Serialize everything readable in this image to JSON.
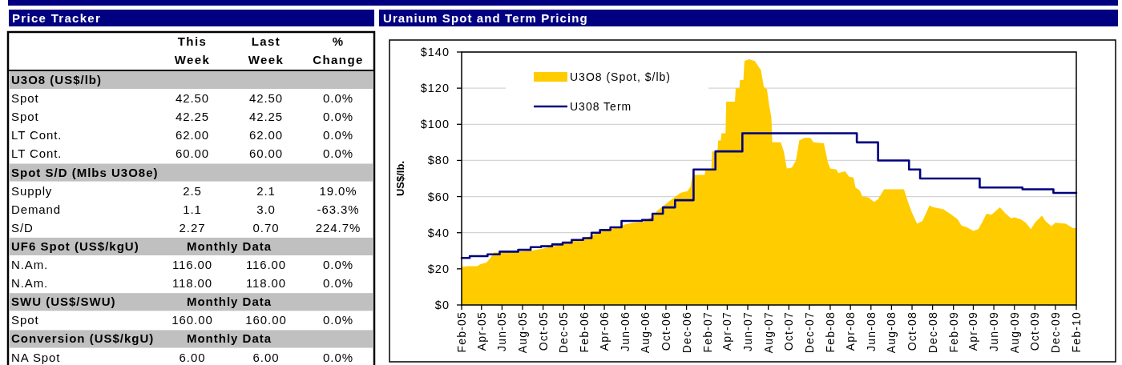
{
  "chart_data": [
    {
      "type": "other",
      "title": "Price Tracker",
      "categories": [
        "This Week",
        "Last Week",
        "% Change"
      ],
      "y_categories": [
        "U3O8 (US$/lb)",
        "Spot",
        "Spot",
        "LT Cont.",
        "LT Cont.",
        "Spot S/D (Mlbs U3O8e)",
        "Supply",
        "Demand",
        "S/D",
        "UF6 Spot (US$/kgU)",
        "N.Am.",
        "N.Am.",
        "SWU (US$/SWU)",
        "Spot",
        "Conversion (US$/kgU)",
        "NA Spot"
      ],
      "cell_labels": [
        [
          null,
          null,
          null
        ],
        [
          "42.50",
          "42.50",
          "0.0%"
        ],
        [
          "42.25",
          "42.25",
          "0.0%"
        ],
        [
          "62.00",
          "62.00",
          "0.0%"
        ],
        [
          "60.00",
          "60.00",
          "0.0%"
        ],
        [
          null,
          null,
          null
        ],
        [
          "2.5",
          "2.1",
          "19.0%"
        ],
        [
          "1.1",
          "3.0",
          "-63.3%"
        ],
        [
          "2.27",
          "0.70",
          "224.7%"
        ],
        [
          "Monthly Data",
          null,
          null
        ],
        [
          "116.00",
          "116.00",
          "0.0%"
        ],
        [
          "118.00",
          "118.00",
          "0.0%"
        ],
        [
          "Monthly Data",
          null,
          null
        ],
        [
          "160.00",
          "160.00",
          "0.0%"
        ],
        [
          "Monthly Data",
          null,
          null
        ],
        [
          "6.00",
          "6.00",
          "0.0%"
        ]
      ]
    },
    {
      "type": "area",
      "title": "Uranium Spot and Term Pricing",
      "ylabel": "US$/lb.",
      "xlim": [
        "2005-02",
        "2010-02"
      ],
      "xticks": [
        {
          "value": "2005-02",
          "label": "Feb-05"
        },
        {
          "value": "2005-04",
          "label": "Apr-05"
        },
        {
          "value": "2005-06",
          "label": "Jun-05"
        },
        {
          "value": "2005-08",
          "label": "Aug-05"
        },
        {
          "value": "2005-10",
          "label": "Oct-05"
        },
        {
          "value": "2005-12",
          "label": "Dec-05"
        },
        {
          "value": "2006-02",
          "label": "Feb-06"
        },
        {
          "value": "2006-04",
          "label": "Apr-06"
        },
        {
          "value": "2006-06",
          "label": "Jun-06"
        },
        {
          "value": "2006-08",
          "label": "Aug-06"
        },
        {
          "value": "2006-10",
          "label": "Oct-06"
        },
        {
          "value": "2006-12",
          "label": "Dec-06"
        },
        {
          "value": "2007-02",
          "label": "Feb-07"
        },
        {
          "value": "2007-04",
          "label": "Apr-07"
        },
        {
          "value": "2007-06",
          "label": "Jun-07"
        },
        {
          "value": "2007-08",
          "label": "Aug-07"
        },
        {
          "value": "2007-10",
          "label": "Oct-07"
        },
        {
          "value": "2007-12",
          "label": "Dec-07"
        },
        {
          "value": "2008-02",
          "label": "Feb-08"
        },
        {
          "value": "2008-04",
          "label": "Apr-08"
        },
        {
          "value": "2008-06",
          "label": "Jun-08"
        },
        {
          "value": "2008-08",
          "label": "Aug-08"
        },
        {
          "value": "2008-10",
          "label": "Oct-08"
        },
        {
          "value": "2008-12",
          "label": "Dec-08"
        },
        {
          "value": "2009-02",
          "label": "Feb-09"
        },
        {
          "value": "2009-04",
          "label": "Apr-09"
        },
        {
          "value": "2009-06",
          "label": "Jun-09"
        },
        {
          "value": "2009-08",
          "label": "Aug-09"
        },
        {
          "value": "2009-10",
          "label": "Oct-09"
        },
        {
          "value": "2009-12",
          "label": "Dec-09"
        },
        {
          "value": "2010-02",
          "label": "Feb-10"
        }
      ],
      "ylim": [
        0,
        140
      ],
      "yticks": [
        {
          "value": 0,
          "label": "$0"
        },
        {
          "value": 20,
          "label": "$20"
        },
        {
          "value": 40,
          "label": "$40"
        },
        {
          "value": 60,
          "label": "$60"
        },
        {
          "value": 80,
          "label": "$80"
        },
        {
          "value": 100,
          "label": "$100"
        },
        {
          "value": 120,
          "label": "$120"
        },
        {
          "value": 140,
          "label": "$140"
        }
      ],
      "grid": "y",
      "legend": "top left",
      "series": [
        {
          "name": "U3O8 (Spot, $/lb)",
          "type": "area",
          "color": "#ffcc00",
          "x": [
            "2005-02-01",
            "2005-02-19",
            "2005-03-19",
            "2005-03-28",
            "2005-04-16",
            "2005-04-28",
            "2005-05-07",
            "2005-05-22",
            "2005-07-16",
            "2005-08-28",
            "2005-10-07",
            "2005-11-16",
            "2005-12-25",
            "2006-02-01",
            "2006-02-28",
            "2006-03-28",
            "2006-05-01",
            "2006-06-01",
            "2006-06-25",
            "2006-07-25",
            "2006-08-22",
            "2006-09-04",
            "2006-09-28",
            "2006-10-22",
            "2006-11-13",
            "2006-12-04",
            "2006-12-13",
            "2006-12-19",
            "2007-01-24",
            "2007-01-26",
            "2007-02-13",
            "2007-02-15",
            "2007-03-03",
            "2007-03-05",
            "2007-03-13",
            "2007-03-15",
            "2007-03-27",
            "2007-03-29",
            "2007-04-24",
            "2007-04-26",
            "2007-05-07",
            "2007-05-09",
            "2007-05-19",
            "2007-05-22",
            "2007-06-05",
            "2007-06-22",
            "2007-07-10",
            "2007-07-19",
            "2007-07-28",
            "2007-08-04",
            "2007-08-10",
            "2007-08-13",
            "2007-09-07",
            "2007-09-16",
            "2007-09-25",
            "2007-10-10",
            "2007-10-22",
            "2007-11-01",
            "2007-11-16",
            "2007-12-04",
            "2007-12-13",
            "2008-01-13",
            "2008-01-25",
            "2008-02-01",
            "2008-02-19",
            "2008-02-25",
            "2008-03-16",
            "2008-03-28",
            "2008-04-10",
            "2008-04-16",
            "2008-04-28",
            "2008-05-07",
            "2008-05-25",
            "2008-06-10",
            "2008-06-22",
            "2008-07-10",
            "2008-09-07",
            "2008-09-19",
            "2008-10-01",
            "2008-10-16",
            "2008-11-01",
            "2008-11-22",
            "2008-12-04",
            "2009-01-01",
            "2009-01-22",
            "2009-02-13",
            "2009-02-25",
            "2009-03-13",
            "2009-04-01",
            "2009-04-16",
            "2009-04-28",
            "2009-05-10",
            "2009-05-25",
            "2009-06-13",
            "2009-06-19",
            "2009-07-04",
            "2009-07-22",
            "2009-08-01",
            "2009-08-19",
            "2009-09-04",
            "2009-09-19",
            "2009-10-01",
            "2009-10-22",
            "2009-11-01",
            "2009-11-19",
            "2009-12-01",
            "2010-01-01",
            "2010-01-22",
            "2010-02-01"
          ],
          "values": [
            21,
            21.5,
            21.5,
            22.5,
            23.5,
            26,
            29,
            29,
            29.5,
            30,
            31.5,
            33,
            35.5,
            36.5,
            39,
            41,
            42.5,
            44.5,
            45.5,
            46,
            49,
            52,
            55.5,
            59,
            62,
            63,
            65.5,
            72,
            72,
            75,
            75,
            85,
            85,
            91,
            91,
            95,
            95,
            112.5,
            112.5,
            120,
            120,
            124.5,
            124.5,
            135,
            136,
            135,
            130,
            120.5,
            119.5,
            110,
            104,
            90,
            90,
            85,
            75.5,
            76,
            80,
            91,
            92.5,
            92.5,
            90,
            89.5,
            79,
            75.5,
            75,
            73,
            74,
            71,
            70.5,
            65,
            63.5,
            60,
            59.5,
            57,
            58.5,
            64,
            64,
            57,
            51,
            45,
            46.5,
            55,
            54,
            53,
            50.5,
            47.5,
            44,
            43,
            41,
            42,
            46,
            50.5,
            50,
            53,
            54,
            51,
            48,
            48.5,
            47.5,
            45.5,
            42,
            45.5,
            49.5,
            46.5,
            43.5,
            45.5,
            45,
            42.5,
            42.5
          ]
        },
        {
          "name": "U308 Term",
          "type": "step",
          "color": "#000080",
          "x": [
            "2005-02-01",
            "2005-02-25",
            "2005-04-19",
            "2005-05-25",
            "2005-07-19",
            "2005-08-25",
            "2005-09-25",
            "2005-10-28",
            "2005-11-28",
            "2005-12-25",
            "2006-01-28",
            "2006-02-22",
            "2006-03-19",
            "2006-04-19",
            "2006-05-22",
            "2006-07-22",
            "2006-08-22",
            "2006-09-22",
            "2006-10-28",
            "2006-12-22",
            "2007-02-25",
            "2007-05-16",
            "2008-04-20",
            "2008-06-22",
            "2008-09-22",
            "2008-10-25",
            "2009-04-20",
            "2009-08-25",
            "2009-11-25",
            "2010-02-01"
          ],
          "values": [
            26,
            27,
            28,
            29.5,
            30.5,
            32,
            32.5,
            33.5,
            34.5,
            36,
            37,
            40,
            41.5,
            43,
            46.5,
            47,
            50.5,
            54,
            58,
            75,
            85,
            95,
            90,
            80,
            75,
            70,
            65,
            64,
            62,
            62
          ]
        }
      ]
    }
  ]
}
